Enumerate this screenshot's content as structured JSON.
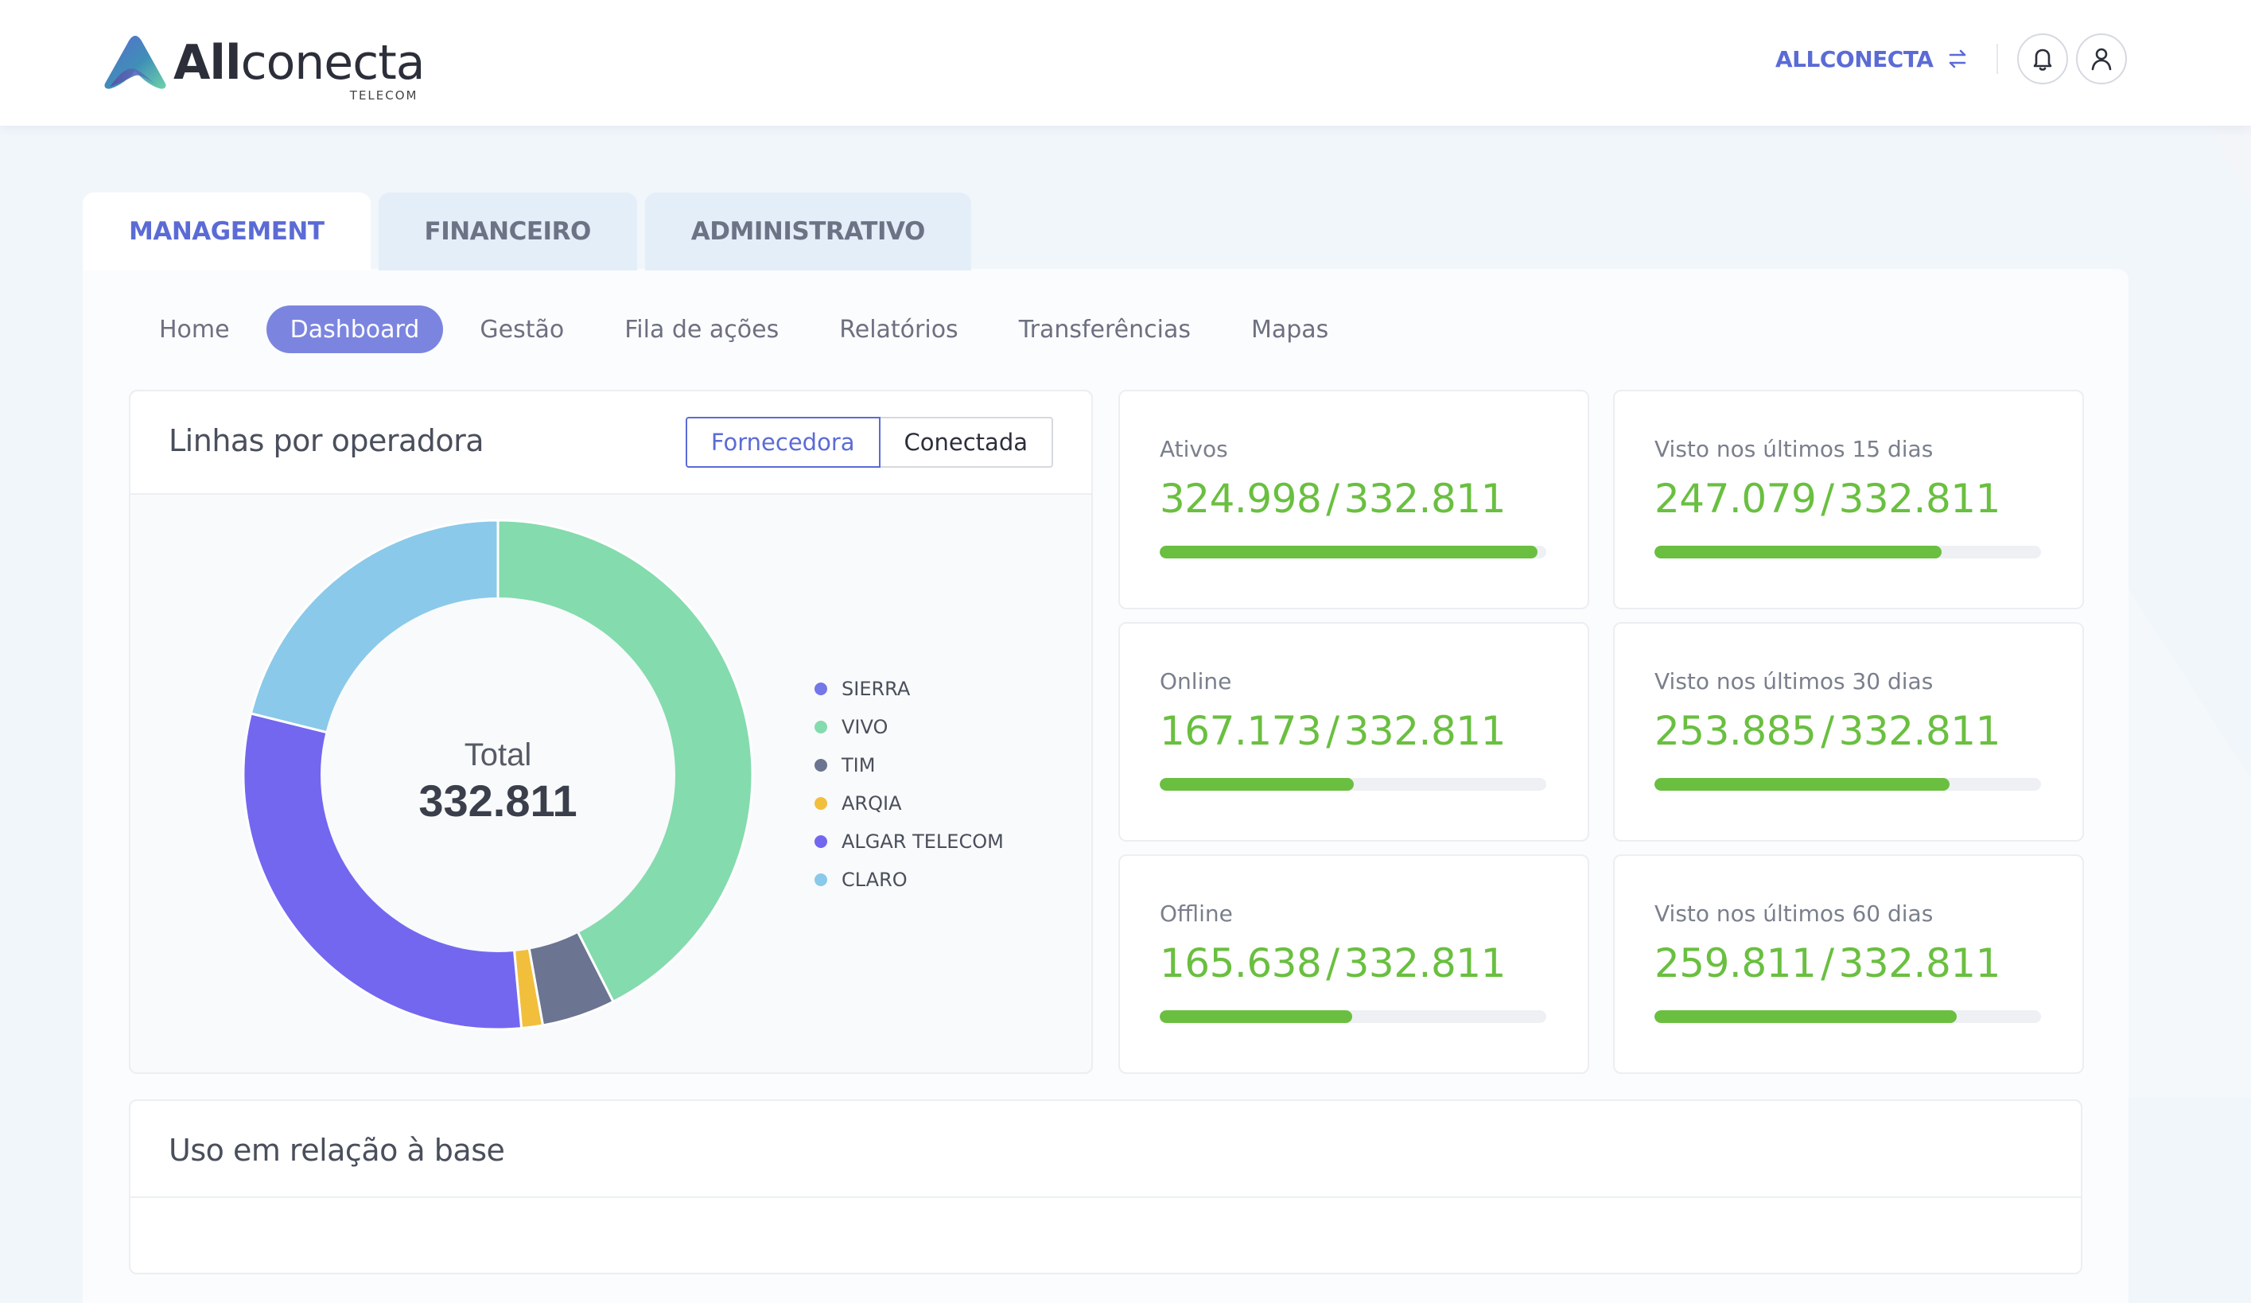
{
  "header": {
    "logo_bold": "All",
    "logo_rest": "conecta",
    "logo_sub": "TELECOM",
    "company_name": "ALLCONECTA",
    "icons": {
      "swap": "swap-arrows-icon",
      "bell": "bell-icon",
      "user": "user-icon"
    }
  },
  "main_tabs": [
    {
      "label": "MANAGEMENT",
      "active": true
    },
    {
      "label": "FINANCEIRO",
      "active": false
    },
    {
      "label": "ADMINISTRATIVO",
      "active": false
    }
  ],
  "sub_nav": [
    {
      "label": "Home",
      "active": false
    },
    {
      "label": "Dashboard",
      "active": true
    },
    {
      "label": "Gestão",
      "active": false
    },
    {
      "label": "Fila de ações",
      "active": false
    },
    {
      "label": "Relatórios",
      "active": false
    },
    {
      "label": "Transferências",
      "active": false
    },
    {
      "label": "Mapas",
      "active": false
    }
  ],
  "operator_card": {
    "title": "Linhas por operadora",
    "toggle": {
      "left": "Fornecedora",
      "right": "Conectada",
      "selected": "Fornecedora"
    },
    "center_label": "Total",
    "center_value": "332.811"
  },
  "chart_data": {
    "type": "pie",
    "title": "Linhas por operadora",
    "categories": [
      "SIERRA",
      "VIVO",
      "TIM",
      "ARQIA",
      "ALGAR TELECOM",
      "CLARO"
    ],
    "values": [
      0,
      141500,
      15500,
      4500,
      101000,
      70311
    ],
    "colors": [
      "#7477e8",
      "#84dbae",
      "#6b7491",
      "#f2bf3d",
      "#7367f0",
      "#8ac9e9"
    ],
    "total": 332811,
    "legend_position": "right"
  },
  "stats": [
    {
      "label": "Ativos",
      "value": "324.998",
      "total": "332.811",
      "fraction": 0.977
    },
    {
      "label": "Visto nos últimos 15 dias",
      "value": "247.079",
      "total": "332.811",
      "fraction": 0.742
    },
    {
      "label": "Online",
      "value": "167.173",
      "total": "332.811",
      "fraction": 0.503
    },
    {
      "label": "Visto nos últimos 30 dias",
      "value": "253.885",
      "total": "332.811",
      "fraction": 0.763
    },
    {
      "label": "Offline",
      "value": "165.638",
      "total": "332.811",
      "fraction": 0.498
    },
    {
      "label": "Visto nos últimos 60 dias",
      "value": "259.811",
      "total": "332.811",
      "fraction": 0.781
    }
  ],
  "base_card": {
    "title": "Uso em relação à base"
  },
  "colors": {
    "accent": "#5b6bd6",
    "success": "#6abf40",
    "pill": "#7b85e0"
  }
}
